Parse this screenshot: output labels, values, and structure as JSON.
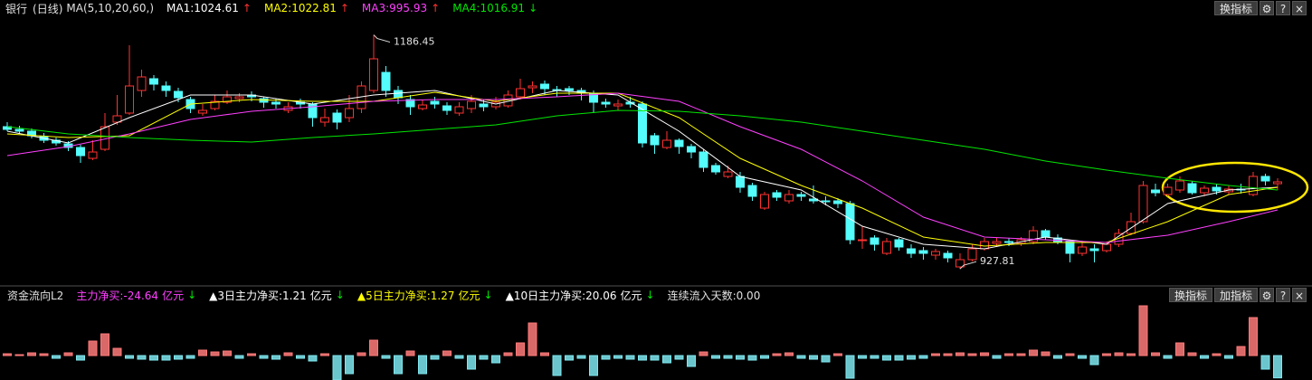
{
  "toolbar": {
    "title": "银行",
    "period": "(日线)",
    "ma_params": "MA(5,10,20,60,)",
    "button": "换指标",
    "icons": [
      "⚙",
      "?",
      "×"
    ]
  },
  "flow_toolbar": {
    "buttons": [
      "换指标",
      "加指标"
    ],
    "icons": [
      "⚙",
      "?",
      "×"
    ]
  },
  "chart_data": [
    {
      "type": "candlestick",
      "ylim": [
        910,
        1220
      ],
      "up_color": "#ff3232",
      "down_color": "#54fcfc",
      "candles": [
        [
          1085,
          1090,
          1080,
          1082
        ],
        [
          1082,
          1086,
          1077,
          1080
        ],
        [
          1080,
          1083,
          1072,
          1075
        ],
        [
          1074,
          1078,
          1067,
          1070
        ],
        [
          1070,
          1073,
          1064,
          1067
        ],
        [
          1066,
          1069,
          1058,
          1062
        ],
        [
          1062,
          1065,
          1045,
          1053
        ],
        [
          1050,
          1070,
          1048,
          1057
        ],
        [
          1060,
          1100,
          1058,
          1085
        ],
        [
          1090,
          1120,
          1087,
          1097
        ],
        [
          1100,
          1175,
          1098,
          1130
        ],
        [
          1125,
          1148,
          1118,
          1140
        ],
        [
          1138,
          1142,
          1125,
          1132
        ],
        [
          1130,
          1135,
          1118,
          1125
        ],
        [
          1124,
          1128,
          1112,
          1117
        ],
        [
          1115,
          1118,
          1100,
          1105
        ],
        [
          1100,
          1110,
          1097,
          1103
        ],
        [
          1105,
          1120,
          1103,
          1113
        ],
        [
          1112,
          1125,
          1110,
          1118
        ],
        [
          1116,
          1122,
          1112,
          1118
        ],
        [
          1120,
          1124,
          1113,
          1118
        ],
        [
          1116,
          1118,
          1106,
          1112
        ],
        [
          1112,
          1116,
          1105,
          1110
        ],
        [
          1103,
          1112,
          1100,
          1107
        ],
        [
          1112,
          1116,
          1105,
          1110
        ],
        [
          1110,
          1112,
          1085,
          1095
        ],
        [
          1090,
          1105,
          1085,
          1095
        ],
        [
          1100,
          1104,
          1082,
          1090
        ],
        [
          1095,
          1120,
          1090,
          1105
        ],
        [
          1105,
          1135,
          1100,
          1130
        ],
        [
          1125,
          1186.45,
          1122,
          1160
        ],
        [
          1145,
          1152,
          1118,
          1125
        ],
        [
          1125,
          1130,
          1110,
          1117
        ],
        [
          1115,
          1120,
          1098,
          1107
        ],
        [
          1105,
          1115,
          1103,
          1109
        ],
        [
          1113,
          1118,
          1105,
          1110
        ],
        [
          1108,
          1112,
          1098,
          1103
        ],
        [
          1100,
          1112,
          1097,
          1107
        ],
        [
          1105,
          1120,
          1100,
          1113
        ],
        [
          1110,
          1115,
          1102,
          1107
        ],
        [
          1107,
          1118,
          1104,
          1112
        ],
        [
          1108,
          1125,
          1106,
          1120
        ],
        [
          1118,
          1138,
          1115,
          1127
        ],
        [
          1128,
          1135,
          1122,
          1130
        ],
        [
          1132,
          1136,
          1120,
          1127
        ],
        [
          1126,
          1130,
          1118,
          1125
        ],
        [
          1127,
          1130,
          1120,
          1125
        ],
        [
          1125,
          1128,
          1114,
          1122
        ],
        [
          1122,
          1125,
          1100,
          1112
        ],
        [
          1112,
          1116,
          1106,
          1110
        ],
        [
          1108,
          1115,
          1103,
          1110
        ],
        [
          1112,
          1118,
          1106,
          1110
        ],
        [
          1110,
          1113,
          1062,
          1067
        ],
        [
          1075,
          1078,
          1055,
          1065
        ],
        [
          1062,
          1080,
          1060,
          1070
        ],
        [
          1070,
          1072,
          1055,
          1063
        ],
        [
          1063,
          1066,
          1050,
          1057
        ],
        [
          1057,
          1060,
          1035,
          1040
        ],
        [
          1042,
          1045,
          1032,
          1035
        ],
        [
          1030,
          1042,
          1028,
          1035
        ],
        [
          1030,
          1035,
          1012,
          1018
        ],
        [
          1020,
          1023,
          1003,
          1008
        ],
        [
          995,
          1013,
          993,
          1010
        ],
        [
          1012,
          1015,
          1003,
          1007
        ],
        [
          1003,
          1015,
          1000,
          1010
        ],
        [
          1010,
          1013,
          1003,
          1008
        ],
        [
          1005,
          1020,
          1000,
          1003
        ],
        [
          1003,
          1008,
          998,
          1002
        ],
        [
          1003,
          1006,
          995,
          1000
        ],
        [
          1000,
          1003,
          955,
          960
        ],
        [
          960,
          975,
          950,
          960
        ],
        [
          962,
          965,
          948,
          955
        ],
        [
          945,
          962,
          943,
          958
        ],
        [
          960,
          962,
          948,
          952
        ],
        [
          950,
          955,
          940,
          945
        ],
        [
          948,
          952,
          938,
          945
        ],
        [
          943,
          950,
          938,
          947
        ],
        [
          945,
          948,
          935,
          940
        ],
        [
          930,
          945,
          927.81,
          938
        ],
        [
          938,
          955,
          936,
          950
        ],
        [
          950,
          962,
          948,
          958
        ],
        [
          956,
          962,
          952,
          958
        ],
        [
          958,
          962,
          953,
          957
        ],
        [
          956,
          963,
          953,
          960
        ],
        [
          958,
          975,
          955,
          970
        ],
        [
          970,
          972,
          960,
          963
        ],
        [
          962,
          966,
          955,
          958
        ],
        [
          958,
          960,
          935,
          945
        ],
        [
          945,
          957,
          942,
          952
        ],
        [
          950,
          955,
          935,
          948
        ],
        [
          948,
          958,
          946,
          955
        ],
        [
          955,
          972,
          952,
          967
        ],
        [
          967,
          990,
          965,
          980
        ],
        [
          980,
          1025,
          978,
          1020
        ],
        [
          1015,
          1022,
          1008,
          1012
        ],
        [
          1010,
          1022,
          1008,
          1018
        ],
        [
          1015,
          1030,
          1012,
          1025
        ],
        [
          1022,
          1025,
          1010,
          1012
        ],
        [
          1012,
          1020,
          1008,
          1017
        ],
        [
          1018,
          1022,
          1010,
          1014
        ],
        [
          1013,
          1020,
          1010,
          1016
        ],
        [
          1016,
          1022,
          1011,
          1015
        ],
        [
          1010,
          1035,
          1008,
          1030
        ],
        [
          1030,
          1033,
          1020,
          1025
        ],
        [
          1022,
          1028,
          1015,
          1024
        ]
      ],
      "ma_x": [
        0,
        5,
        10,
        15,
        20,
        25,
        30,
        35,
        40,
        45,
        50,
        55,
        60,
        65,
        70,
        75,
        80,
        85,
        90,
        95,
        100,
        104
      ],
      "ma_lines": [
        {
          "label": "MA1:1024.61",
          "arrow": "↑",
          "arrow_color": "#ff3232",
          "color": "#ffffff",
          "values": [
            1080,
            1067,
            1095,
            1120,
            1120,
            1110,
            1120,
            1125,
            1110,
            1125,
            1120,
            1080,
            1030,
            1015,
            975,
            955,
            950,
            963,
            955,
            1000,
            1015,
            1018
          ]
        },
        {
          "label": "MA2:1022.81",
          "arrow": "↑",
          "arrow_color": "#ff3232",
          "color": "#ffff00",
          "values": [
            1077,
            1073,
            1075,
            1110,
            1115,
            1113,
            1113,
            1123,
            1113,
            1122,
            1122,
            1095,
            1050,
            1020,
            995,
            963,
            953,
            957,
            957,
            980,
            1010,
            1018
          ]
        },
        {
          "label": "MA3:995.93",
          "arrow": "↑",
          "arrow_color": "#ff3232",
          "color": "#ff40ff",
          "values": [
            1053,
            1063,
            1077,
            1093,
            1102,
            1107,
            1113,
            1115,
            1115,
            1118,
            1122,
            1113,
            1085,
            1060,
            1025,
            985,
            963,
            960,
            957,
            965,
            980,
            993
          ]
        },
        {
          "label": "MA4:1016.91",
          "arrow": "↓",
          "arrow_color": "#00e600",
          "color": "#00e600",
          "values": [
            1085,
            1077,
            1073,
            1070,
            1068,
            1073,
            1077,
            1082,
            1087,
            1097,
            1103,
            1102,
            1097,
            1090,
            1080,
            1070,
            1060,
            1047,
            1037,
            1028,
            1020,
            1015
          ]
        }
      ],
      "annotations": [
        {
          "index": 30,
          "value": 1186.45
        },
        {
          "index": 78,
          "value": 927.81
        }
      ]
    },
    {
      "type": "bar",
      "title": "资金流向L2",
      "ylim": [
        -27,
        68
      ],
      "up_color": "#ff7a7a",
      "down_color": "#7ee8f0",
      "stats": [
        {
          "label": "主力净买:-24.64",
          "unit": "亿元",
          "arrow": "↓",
          "color": "#ff40ff"
        },
        {
          "label": "▲3日主力净买:1.21",
          "unit": "亿元",
          "arrow": "↓",
          "color": "#ffffff"
        },
        {
          "label": "▲5日主力净买:1.27",
          "unit": "亿元",
          "arrow": "↓",
          "color": "#ffff00"
        },
        {
          "label": "▲10日主力净买:20.06",
          "unit": "亿元",
          "arrow": "↓",
          "color": "#ffffff"
        }
      ],
      "arrow_color": "#00e600",
      "streak": "连续流入天数:0.00",
      "values": [
        2,
        1,
        3,
        2,
        -3,
        3,
        -5,
        16,
        24,
        8,
        -3,
        -4,
        -5,
        -5,
        -4,
        -3,
        6,
        4,
        5,
        -3,
        2,
        -3,
        -4,
        3,
        -3,
        -6,
        2,
        -27,
        -20,
        3,
        17,
        -3,
        -20,
        5,
        -20,
        -4,
        5,
        -3,
        -15,
        -4,
        -8,
        3,
        14,
        36,
        3,
        -22,
        -5,
        -3,
        -22,
        -4,
        -3,
        -4,
        -5,
        -5,
        -8,
        -4,
        -12,
        4,
        -3,
        -3,
        -4,
        -5,
        -3,
        2,
        3,
        -3,
        -4,
        -7,
        2,
        -25,
        -3,
        -3,
        -5,
        -5,
        -4,
        -3,
        2,
        2,
        3,
        2,
        3,
        -3,
        2,
        2,
        6,
        4,
        -3,
        2,
        -3,
        -10,
        2,
        3,
        2,
        55,
        3,
        -3,
        14,
        3,
        -3,
        2,
        -3,
        10,
        42,
        -15,
        -24.64
      ]
    }
  ]
}
